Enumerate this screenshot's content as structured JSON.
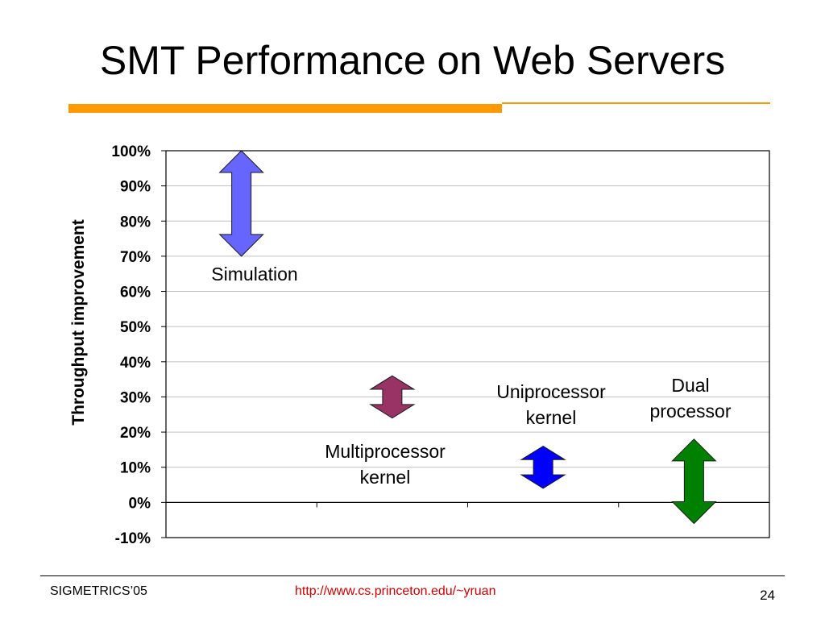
{
  "slide": {
    "title": "SMT Performance on Web Servers",
    "rule_color": "#FF9900",
    "footer_left": "SIGMETRICS’05",
    "footer_center": "http://www.cs.princeton.edu/~yruan",
    "footer_center_color": "#CC0000",
    "page_number": "24"
  },
  "chart_data": {
    "type": "range",
    "ylabel": "Throughput improvement",
    "ylim": [
      -10,
      100
    ],
    "yticks": [
      "100%",
      "90%",
      "80%",
      "70%",
      "60%",
      "50%",
      "40%",
      "30%",
      "20%",
      "10%",
      "0%",
      "-10%"
    ],
    "grid": true,
    "categories": [
      "Simulation",
      "Multiprocessor kernel",
      "Uniprocessor kernel",
      "Dual processor"
    ],
    "ranges": [
      {
        "label": "Simulation",
        "low": 70,
        "high": 100,
        "color": "#6666FF"
      },
      {
        "label": "Multiprocessor kernel",
        "low": 24,
        "high": 36,
        "color": "#993366"
      },
      {
        "label": "Uniprocessor kernel",
        "low": 4,
        "high": 16,
        "color": "#0000FF"
      },
      {
        "label": "Dual processor",
        "low": -6,
        "high": 18,
        "color": "#008000"
      }
    ],
    "annotations": [
      {
        "lines": [
          "Simulation"
        ]
      },
      {
        "lines": [
          "Multiprocessor",
          "kernel"
        ]
      },
      {
        "lines": [
          "Uniprocessor",
          "kernel"
        ]
      },
      {
        "lines": [
          "Dual",
          "processor"
        ]
      }
    ]
  }
}
